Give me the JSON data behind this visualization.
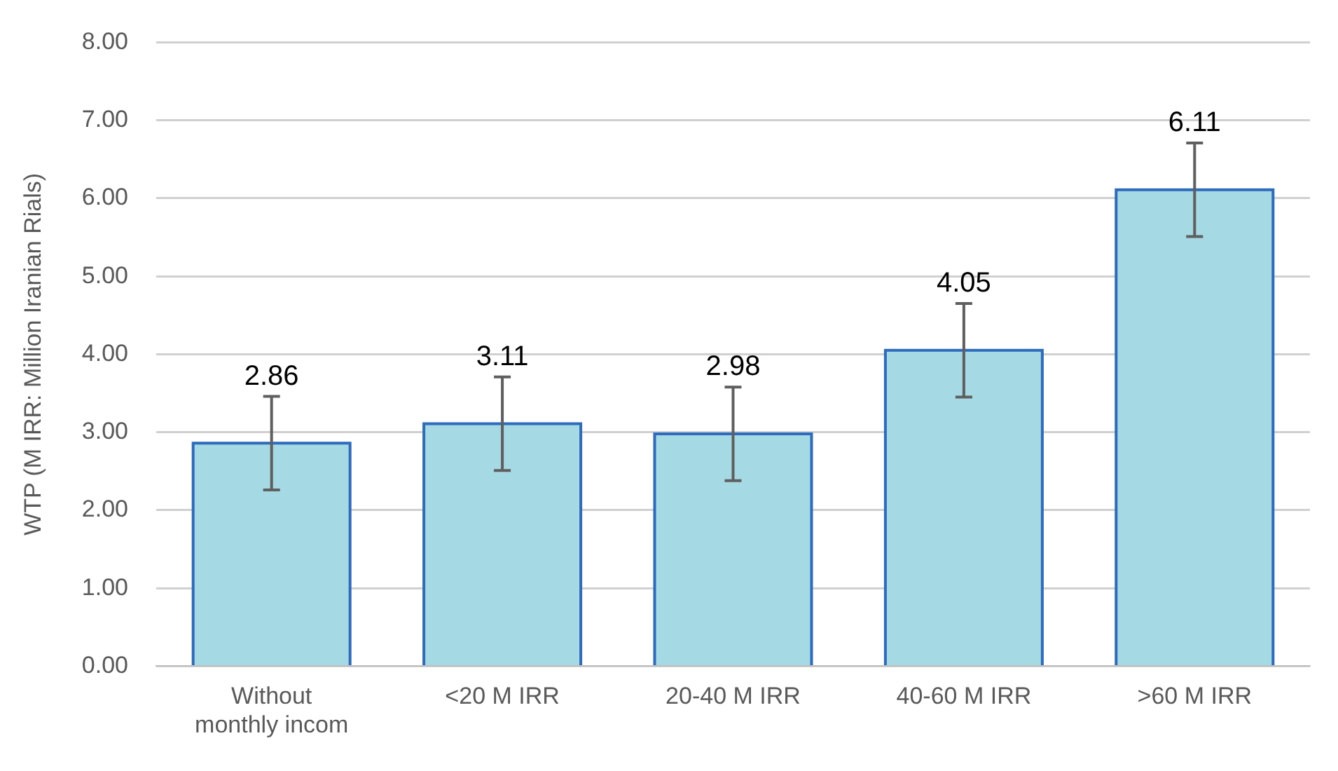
{
  "chart_data": {
    "type": "bar",
    "ylabel": "WTP (M IRR: Million Iranian Rials)",
    "categories": [
      "Without monthly incom",
      "<20 M IRR",
      "20-40 M IRR",
      "40-60 M IRR",
      ">60 M IRR"
    ],
    "values": [
      2.86,
      3.11,
      2.98,
      4.05,
      6.11
    ],
    "errors": [
      0.6,
      0.6,
      0.6,
      0.6,
      0.6
    ],
    "color": "#a5d9e3",
    "ylim": [
      0,
      8
    ],
    "yticks": [
      {
        "value": 0,
        "label": "0.00"
      },
      {
        "value": 1,
        "label": "1.00"
      },
      {
        "value": 2,
        "label": "2.00"
      },
      {
        "value": 3,
        "label": "3.00"
      },
      {
        "value": 4,
        "label": "4.00"
      },
      {
        "value": 5,
        "label": "5.00"
      },
      {
        "value": 6,
        "label": "6.00"
      },
      {
        "value": 7,
        "label": "7.00"
      },
      {
        "value": 8,
        "label": "8.00"
      }
    ],
    "grid": "y",
    "data_labels": true,
    "legend": false
  }
}
